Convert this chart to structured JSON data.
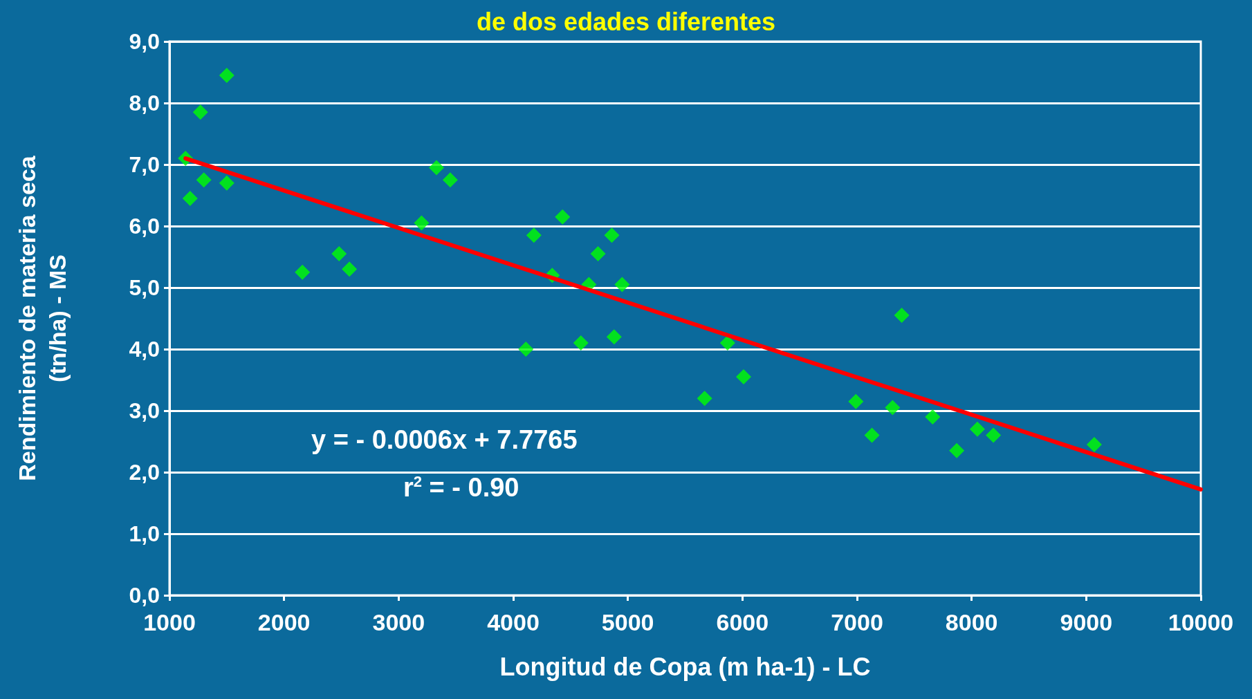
{
  "chart_data": {
    "type": "scatter",
    "title": "de dos edades diferentes",
    "xlabel": "Longitud de Copa (m ha-1) - LC",
    "ylabel": "Rendimiento de materia seca\n(tn/ha) - MS",
    "xlim": [
      1000,
      10000
    ],
    "xticks": [
      1000,
      2000,
      3000,
      4000,
      5000,
      6000,
      7000,
      8000,
      9000,
      10000
    ],
    "ylim": [
      0,
      9
    ],
    "yticks": [
      {
        "value": 0,
        "label": "0,0"
      },
      {
        "value": 1,
        "label": "1,0"
      },
      {
        "value": 2,
        "label": "2,0"
      },
      {
        "value": 3,
        "label": "3,0"
      },
      {
        "value": 4,
        "label": "4,0"
      },
      {
        "value": 5,
        "label": "5,0"
      },
      {
        "value": 6,
        "label": "6,0"
      },
      {
        "value": 7,
        "label": "7,0"
      },
      {
        "value": 8,
        "label": "8,0"
      },
      {
        "value": 9,
        "label": "9,0"
      }
    ],
    "grid": "y",
    "marker": "diamond",
    "series": [
      {
        "color": "#00ff00",
        "x": [
          1140,
          1180,
          1270,
          1300,
          1500,
          1500,
          2160,
          2480,
          2570,
          3200,
          3330,
          3450,
          4110,
          4180,
          4340,
          4430,
          4590,
          4660,
          4740,
          4860,
          4880,
          4950,
          5670,
          5870,
          6010,
          6990,
          7130,
          7310,
          7390,
          7660,
          7870,
          8050,
          8190,
          9070
        ],
        "values": [
          7.1,
          6.45,
          7.85,
          6.75,
          8.45,
          6.7,
          5.25,
          5.55,
          5.3,
          6.05,
          6.95,
          6.75,
          4.0,
          5.85,
          5.2,
          6.15,
          4.1,
          5.05,
          5.55,
          5.85,
          4.2,
          5.05,
          3.2,
          4.1,
          3.55,
          3.15,
          2.6,
          3.05,
          4.55,
          2.9,
          2.35,
          2.7,
          2.6,
          2.45
        ]
      },
      {
        "type": "line",
        "color": "#ff0000",
        "marker": "none",
        "x": [
          1140,
          10000
        ],
        "values": [
          7.1,
          1.72
        ]
      }
    ],
    "annotations": [
      "y = - 0.0006x + 7.7765",
      "r$^{2}$ = - 0.90"
    ]
  }
}
